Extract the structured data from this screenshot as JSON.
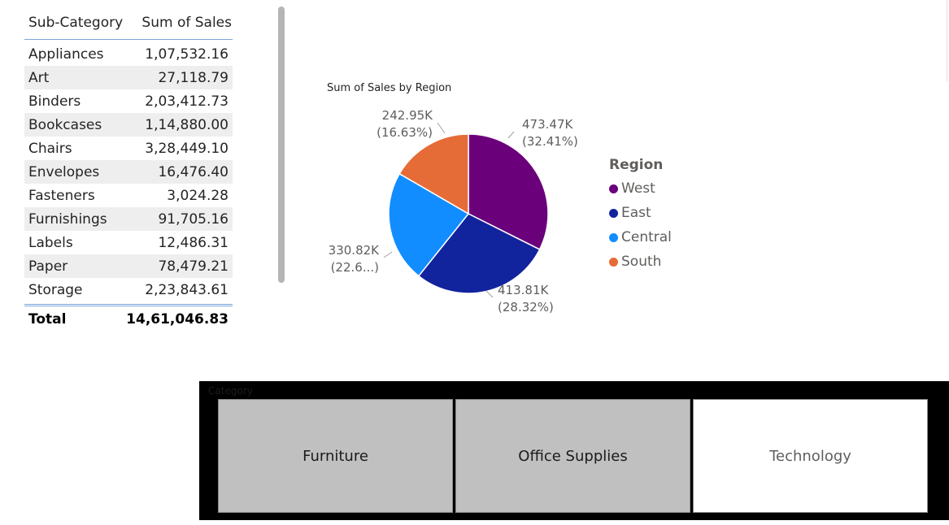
{
  "table": {
    "headers": [
      "Sub-Category",
      "Sum of Sales"
    ],
    "rows": [
      {
        "name": "Appliances",
        "value": "1,07,532.16"
      },
      {
        "name": "Art",
        "value": "27,118.79"
      },
      {
        "name": "Binders",
        "value": "2,03,412.73"
      },
      {
        "name": "Bookcases",
        "value": "1,14,880.00"
      },
      {
        "name": "Chairs",
        "value": "3,28,449.10"
      },
      {
        "name": "Envelopes",
        "value": "16,476.40"
      },
      {
        "name": "Fasteners",
        "value": "3,024.28"
      },
      {
        "name": "Furnishings",
        "value": "91,705.16"
      },
      {
        "name": "Labels",
        "value": "12,486.31"
      },
      {
        "name": "Paper",
        "value": "78,479.21"
      },
      {
        "name": "Storage",
        "value": "2,23,843.61"
      }
    ],
    "total_label": "Total",
    "total_value": "14,61,046.83"
  },
  "chart_data": {
    "type": "pie",
    "title": "Sum of Sales by Region",
    "legend_title": "Region",
    "legend_position": "right",
    "slices": [
      {
        "name": "West",
        "value": 473.47,
        "value_label": "473.47K",
        "percent_label": "(32.41%)",
        "color": "#6b007b"
      },
      {
        "name": "East",
        "value": 413.81,
        "value_label": "413.81K",
        "percent_label": "(28.32%)",
        "color": "#12239e"
      },
      {
        "name": "Central",
        "value": 330.82,
        "value_label": "330.82K",
        "percent_label": "(22.6...)",
        "color": "#118dff"
      },
      {
        "name": "South",
        "value": 242.95,
        "value_label": "242.95K",
        "percent_label": "(16.63%)",
        "color": "#e66c37"
      }
    ]
  },
  "slicer": {
    "header": "Category",
    "items": [
      {
        "label": "Furniture",
        "selected": true
      },
      {
        "label": "Office Supplies",
        "selected": true
      },
      {
        "label": "Technology",
        "selected": false
      }
    ]
  }
}
